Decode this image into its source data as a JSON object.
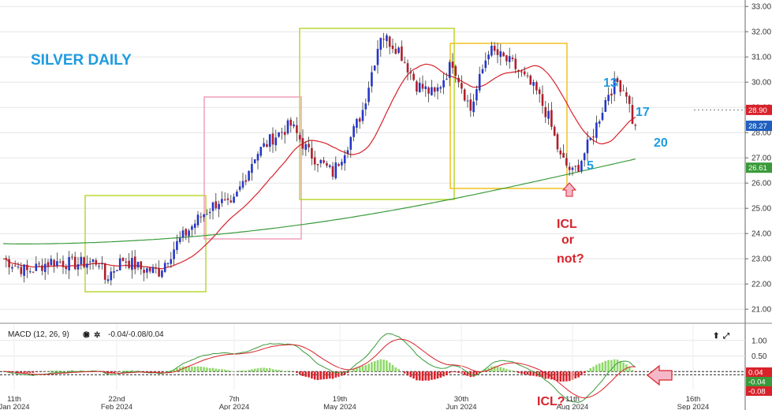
{
  "chart_data": {
    "type": "candlestick",
    "title": "SILVER DAILY",
    "ylim": [
      20.6,
      33.1
    ],
    "y_ticks": [
      21,
      22,
      23,
      24,
      25,
      26,
      27,
      28,
      29,
      30,
      31,
      32,
      33
    ],
    "y_tick_labels": [
      "21.00",
      "22.00",
      "23.00",
      "24.00",
      "25.00",
      "26.00",
      "27.00",
      "28.00",
      "29.00",
      "30.00",
      "31.00",
      "32.00",
      "33.00"
    ],
    "date_ticks": [
      {
        "day": "11th",
        "month": "Jan 2024"
      },
      {
        "day": "22nd",
        "month": "Feb 2024"
      },
      {
        "day": "7th",
        "month": "Apr 2024"
      },
      {
        "day": "19th",
        "month": "May 2024"
      },
      {
        "day": "30th",
        "month": "Jun 2024"
      },
      {
        "day": "11th",
        "month": "Aug 2024"
      },
      {
        "day": "16th",
        "month": "Sep 2024"
      }
    ],
    "price_tags": [
      {
        "label": "28.90",
        "value": 28.9,
        "color": "#d8222a"
      },
      {
        "label": "28.27",
        "value": 28.27,
        "color": "#1f5fbf"
      },
      {
        "label": "26.61",
        "value": 26.61,
        "color": "#3a9a3a"
      }
    ],
    "close_anchors": [
      [
        0,
        23.0
      ],
      [
        8,
        22.5
      ],
      [
        16,
        22.9
      ],
      [
        24,
        22.8
      ],
      [
        32,
        22.9
      ],
      [
        34,
        22.2
      ],
      [
        40,
        23.0
      ],
      [
        46,
        22.6
      ],
      [
        52,
        22.5
      ],
      [
        58,
        23.6
      ],
      [
        66,
        24.7
      ],
      [
        72,
        25.3
      ],
      [
        76,
        25.0
      ],
      [
        84,
        27.1
      ],
      [
        90,
        27.8
      ],
      [
        96,
        28.3
      ],
      [
        102,
        27.2
      ],
      [
        110,
        26.4
      ],
      [
        116,
        27.8
      ],
      [
        120,
        28.9
      ],
      [
        126,
        31.9
      ],
      [
        132,
        31.3
      ],
      [
        138,
        29.9
      ],
      [
        144,
        29.5
      ],
      [
        150,
        30.8
      ],
      [
        156,
        28.9
      ],
      [
        162,
        31.3
      ],
      [
        170,
        30.7
      ],
      [
        178,
        29.6
      ],
      [
        182,
        28.6
      ],
      [
        186,
        27.0
      ],
      [
        190,
        26.4
      ],
      [
        192,
        26.7
      ],
      [
        196,
        27.7
      ],
      [
        198,
        28.3
      ],
      [
        202,
        29.6
      ],
      [
        205,
        30.0
      ],
      [
        208,
        29.6
      ],
      [
        210,
        28.5
      ],
      [
        211,
        28.27
      ]
    ],
    "annotations": {
      "count_13": "13",
      "count_17": "17",
      "count_20": "20",
      "count_5": "5",
      "icl_line1": "ICL",
      "icl_line2": "or",
      "icl_line3": "not?",
      "icl_bottom": "ICL?"
    },
    "macd": {
      "label": "MACD (12, 26, 9)",
      "values_text": "-0.04/-0.08/0.04",
      "ylim": [
        -0.6,
        1.5
      ],
      "y_ticks": [
        1.0,
        0.5
      ],
      "y_tick_labels": [
        "1.00",
        "0.50"
      ],
      "tags": [
        {
          "label": "0.04",
          "color": "#d8222a"
        },
        {
          "label": "-0.04",
          "color": "#3a9a3a"
        },
        {
          "label": "-0.08",
          "color": "#d8222a"
        }
      ]
    },
    "colors": {
      "up": "#2437c9",
      "down": "#b01e2c",
      "ma_short": "#d8222a",
      "ma_long": "#3a9a3a",
      "box_green": "#b8d832",
      "box_pink": "#f0a0b8",
      "box_yellow": "#f0c020"
    }
  }
}
